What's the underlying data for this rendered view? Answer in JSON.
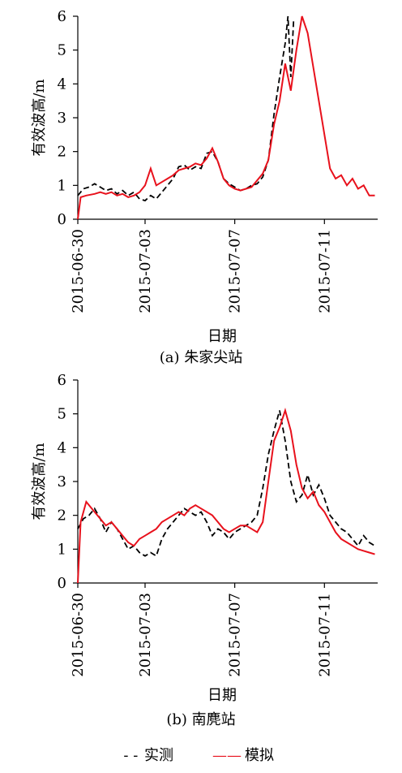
{
  "legend": {
    "observed_marker": "- - ",
    "observed_label": "实测",
    "simulated_marker": "——",
    "simulated_label": "模拟"
  },
  "colors": {
    "observed": "#000000",
    "simulated": "#e8111c"
  },
  "chart_data": [
    {
      "type": "line",
      "caption": "(a) 朱家尖站",
      "xlabel": "日期",
      "ylabel": "有效波高/m",
      "xlim": [
        "2015-06-30",
        "2015-07-13T09:00"
      ],
      "ylim": [
        0,
        6
      ],
      "yticks": [
        "0",
        "1",
        "2",
        "3",
        "4",
        "5",
        "6"
      ],
      "xticks": [
        "2015-06-30",
        "2015-07-03",
        "2015-07-07",
        "2015-07-11"
      ],
      "grid": false,
      "series": [
        {
          "name": "实测",
          "style": "dashed",
          "color": "#000000",
          "x": [
            "2015-06-30T00:00",
            "2015-06-30T06:00",
            "2015-06-30T12:00",
            "2015-06-30T18:00",
            "2015-07-01T00:00",
            "2015-07-01T06:00",
            "2015-07-01T12:00",
            "2015-07-01T18:00",
            "2015-07-02T00:00",
            "2015-07-02T06:00",
            "2015-07-02T12:00",
            "2015-07-02T18:00",
            "2015-07-03T00:00",
            "2015-07-03T06:00",
            "2015-07-03T12:00",
            "2015-07-03T18:00",
            "2015-07-04T00:00",
            "2015-07-04T06:00",
            "2015-07-04T12:00",
            "2015-07-04T18:00",
            "2015-07-05T00:00",
            "2015-07-05T06:00",
            "2015-07-05T12:00",
            "2015-07-05T18:00",
            "2015-07-06T00:00",
            "2015-07-06T06:00",
            "2015-07-06T12:00",
            "2015-07-06T18:00",
            "2015-07-07T00:00",
            "2015-07-07T06:00",
            "2015-07-07T12:00",
            "2015-07-07T18:00",
            "2015-07-08T00:00",
            "2015-07-08T06:00",
            "2015-07-08T12:00",
            "2015-07-08T18:00",
            "2015-07-09T00:00",
            "2015-07-09T06:00",
            "2015-07-09T09:00",
            "2015-07-09T12:00",
            "2015-07-09T15:00"
          ],
          "values": [
            0.7,
            0.9,
            0.95,
            1.05,
            0.95,
            0.85,
            0.9,
            0.75,
            0.85,
            0.7,
            0.8,
            0.6,
            0.55,
            0.7,
            0.6,
            0.8,
            1.0,
            1.2,
            1.55,
            1.6,
            1.45,
            1.55,
            1.5,
            1.95,
            2.0,
            1.7,
            1.2,
            1.05,
            0.95,
            0.85,
            0.9,
            1.0,
            1.05,
            1.25,
            1.75,
            3.1,
            4.2,
            5.2,
            6.0,
            4.2,
            5.9
          ]
        },
        {
          "name": "模拟",
          "style": "solid",
          "color": "#e8111c",
          "x": [
            "2015-06-30T00:00",
            "2015-06-30T03:00",
            "2015-06-30T09:00",
            "2015-06-30T18:00",
            "2015-07-01T00:00",
            "2015-07-01T06:00",
            "2015-07-01T12:00",
            "2015-07-01T18:00",
            "2015-07-02T00:00",
            "2015-07-02T06:00",
            "2015-07-02T12:00",
            "2015-07-02T18:00",
            "2015-07-03T00:00",
            "2015-07-03T06:00",
            "2015-07-03T12:00",
            "2015-07-03T18:00",
            "2015-07-04T00:00",
            "2015-07-04T06:00",
            "2015-07-04T12:00",
            "2015-07-04T18:00",
            "2015-07-05T00:00",
            "2015-07-05T06:00",
            "2015-07-05T12:00",
            "2015-07-05T18:00",
            "2015-07-06T00:00",
            "2015-07-06T06:00",
            "2015-07-06T12:00",
            "2015-07-06T18:00",
            "2015-07-07T00:00",
            "2015-07-07T06:00",
            "2015-07-07T12:00",
            "2015-07-07T18:00",
            "2015-07-08T00:00",
            "2015-07-08T06:00",
            "2015-07-08T12:00",
            "2015-07-08T18:00",
            "2015-07-09T00:00",
            "2015-07-09T06:00",
            "2015-07-09T12:00",
            "2015-07-09T18:00",
            "2015-07-10T00:00",
            "2015-07-10T06:00",
            "2015-07-10T12:00",
            "2015-07-10T18:00",
            "2015-07-11T00:00",
            "2015-07-11T06:00",
            "2015-07-11T12:00",
            "2015-07-11T18:00",
            "2015-07-12T00:00",
            "2015-07-12T06:00",
            "2015-07-12T12:00",
            "2015-07-12T18:00",
            "2015-07-13T00:00",
            "2015-07-13T06:00"
          ],
          "values": [
            0.0,
            0.65,
            0.7,
            0.75,
            0.8,
            0.75,
            0.8,
            0.7,
            0.75,
            0.65,
            0.7,
            0.8,
            1.0,
            1.5,
            1.0,
            1.1,
            1.2,
            1.3,
            1.45,
            1.5,
            1.55,
            1.65,
            1.6,
            1.8,
            2.1,
            1.7,
            1.2,
            1.0,
            0.9,
            0.85,
            0.9,
            0.95,
            1.15,
            1.35,
            1.75,
            2.8,
            3.5,
            4.6,
            3.8,
            5.0,
            6.0,
            5.5,
            4.5,
            3.5,
            2.5,
            1.5,
            1.2,
            1.3,
            1.0,
            1.2,
            0.9,
            1.0,
            0.7,
            0.7
          ]
        }
      ]
    },
    {
      "type": "line",
      "caption": "(b) 南麂站",
      "xlabel": "日期",
      "ylabel": "有效波高/m",
      "xlim": [
        "2015-06-30",
        "2015-07-13T09:00"
      ],
      "ylim": [
        0,
        6
      ],
      "yticks": [
        "0",
        "1",
        "2",
        "3",
        "4",
        "5",
        "6"
      ],
      "xticks": [
        "2015-06-30",
        "2015-07-03",
        "2015-07-07",
        "2015-07-11"
      ],
      "grid": false,
      "series": [
        {
          "name": "实测",
          "style": "dashed",
          "color": "#000000",
          "x": [
            "2015-06-30T00:00",
            "2015-06-30T06:00",
            "2015-06-30T12:00",
            "2015-06-30T18:00",
            "2015-07-01T00:00",
            "2015-07-01T06:00",
            "2015-07-01T12:00",
            "2015-07-01T18:00",
            "2015-07-02T00:00",
            "2015-07-02T06:00",
            "2015-07-02T12:00",
            "2015-07-02T18:00",
            "2015-07-03T00:00",
            "2015-07-03T06:00",
            "2015-07-03T12:00",
            "2015-07-03T18:00",
            "2015-07-04T00:00",
            "2015-07-04T06:00",
            "2015-07-04T12:00",
            "2015-07-04T18:00",
            "2015-07-05T00:00",
            "2015-07-05T06:00",
            "2015-07-05T12:00",
            "2015-07-05T18:00",
            "2015-07-06T00:00",
            "2015-07-06T06:00",
            "2015-07-06T12:00",
            "2015-07-06T18:00",
            "2015-07-07T00:00",
            "2015-07-07T06:00",
            "2015-07-07T12:00",
            "2015-07-07T18:00",
            "2015-07-08T00:00",
            "2015-07-08T06:00",
            "2015-07-08T12:00",
            "2015-07-08T18:00",
            "2015-07-09T00:00",
            "2015-07-09T06:00",
            "2015-07-09T12:00",
            "2015-07-09T18:00",
            "2015-07-10T00:00",
            "2015-07-10T06:00",
            "2015-07-10T12:00",
            "2015-07-10T18:00",
            "2015-07-11T00:00",
            "2015-07-11T06:00",
            "2015-07-11T12:00",
            "2015-07-11T18:00",
            "2015-07-12T00:00",
            "2015-07-12T06:00",
            "2015-07-12T12:00",
            "2015-07-12T18:00",
            "2015-07-13T00:00",
            "2015-07-13T06:00"
          ],
          "values": [
            1.6,
            1.9,
            2.0,
            2.2,
            1.9,
            1.5,
            1.8,
            1.6,
            1.3,
            1.0,
            1.1,
            0.9,
            0.8,
            0.9,
            0.8,
            1.3,
            1.6,
            1.8,
            2.0,
            2.2,
            2.1,
            2.0,
            2.1,
            1.8,
            1.4,
            1.6,
            1.5,
            1.3,
            1.5,
            1.6,
            1.7,
            1.8,
            2.0,
            2.8,
            3.8,
            4.5,
            5.1,
            4.2,
            3.0,
            2.4,
            2.6,
            3.2,
            2.6,
            2.9,
            2.5,
            2.0,
            1.8,
            1.6,
            1.5,
            1.3,
            1.1,
            1.4,
            1.2,
            1.1
          ]
        },
        {
          "name": "模拟",
          "style": "solid",
          "color": "#e8111c",
          "x": [
            "2015-06-30T00:00",
            "2015-06-30T03:00",
            "2015-06-30T09:00",
            "2015-06-30T18:00",
            "2015-07-01T00:00",
            "2015-07-01T06:00",
            "2015-07-01T12:00",
            "2015-07-01T18:00",
            "2015-07-02T00:00",
            "2015-07-02T06:00",
            "2015-07-02T12:00",
            "2015-07-02T18:00",
            "2015-07-03T00:00",
            "2015-07-03T06:00",
            "2015-07-03T12:00",
            "2015-07-03T18:00",
            "2015-07-04T00:00",
            "2015-07-04T06:00",
            "2015-07-04T12:00",
            "2015-07-04T18:00",
            "2015-07-05T00:00",
            "2015-07-05T06:00",
            "2015-07-05T12:00",
            "2015-07-05T18:00",
            "2015-07-06T00:00",
            "2015-07-06T06:00",
            "2015-07-06T12:00",
            "2015-07-06T18:00",
            "2015-07-07T00:00",
            "2015-07-07T06:00",
            "2015-07-07T12:00",
            "2015-07-07T18:00",
            "2015-07-08T00:00",
            "2015-07-08T06:00",
            "2015-07-08T12:00",
            "2015-07-08T18:00",
            "2015-07-09T00:00",
            "2015-07-09T06:00",
            "2015-07-09T12:00",
            "2015-07-09T18:00",
            "2015-07-10T00:00",
            "2015-07-10T06:00",
            "2015-07-10T12:00",
            "2015-07-10T18:00",
            "2015-07-11T00:00",
            "2015-07-11T06:00",
            "2015-07-11T12:00",
            "2015-07-11T18:00",
            "2015-07-12T00:00",
            "2015-07-12T06:00",
            "2015-07-12T12:00",
            "2015-07-12T18:00",
            "2015-07-13T00:00",
            "2015-07-13T06:00"
          ],
          "values": [
            0.0,
            1.8,
            2.4,
            2.1,
            1.9,
            1.7,
            1.8,
            1.6,
            1.4,
            1.2,
            1.1,
            1.3,
            1.4,
            1.5,
            1.6,
            1.8,
            1.9,
            2.0,
            2.1,
            2.0,
            2.2,
            2.3,
            2.2,
            2.1,
            2.0,
            1.8,
            1.6,
            1.5,
            1.6,
            1.7,
            1.7,
            1.6,
            1.5,
            1.8,
            3.0,
            4.2,
            4.6,
            5.1,
            4.5,
            3.5,
            2.8,
            2.5,
            2.7,
            2.3,
            2.1,
            1.8,
            1.5,
            1.3,
            1.2,
            1.1,
            1.0,
            0.95,
            0.9,
            0.85
          ]
        }
      ]
    }
  ]
}
